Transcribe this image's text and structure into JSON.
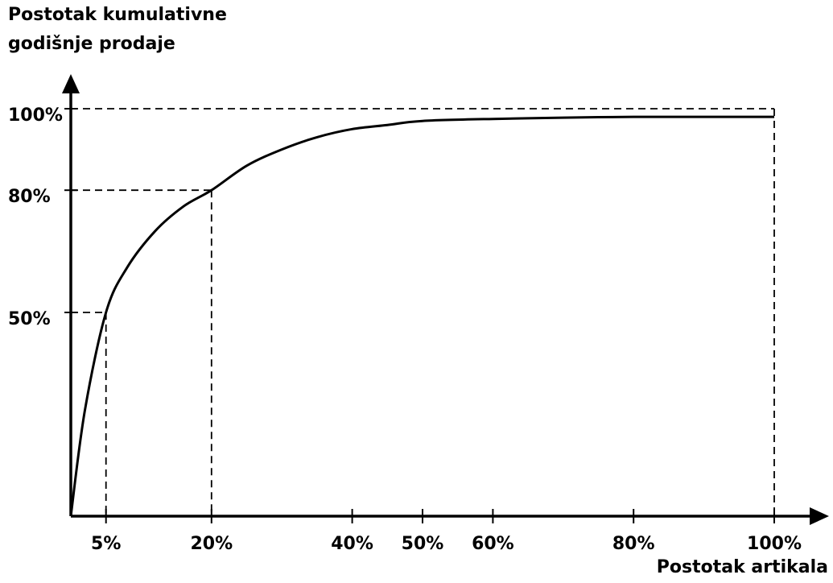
{
  "chart_data": {
    "type": "line",
    "title": "",
    "ylabel_lines": [
      "Postotak kumulativne",
      "godišnje prodaje"
    ],
    "xlabel": "Postotak artikala",
    "xlim": [
      0,
      100
    ],
    "ylim": [
      0,
      100
    ],
    "x_ticks": [
      {
        "value": 5,
        "label": "5%"
      },
      {
        "value": 20,
        "label": "20%"
      },
      {
        "value": 40,
        "label": "40%"
      },
      {
        "value": 50,
        "label": "50%"
      },
      {
        "value": 60,
        "label": "60%"
      },
      {
        "value": 80,
        "label": "80%"
      },
      {
        "value": 100,
        "label": "100%"
      }
    ],
    "y_ticks": [
      {
        "value": 50,
        "label": "50%"
      },
      {
        "value": 80,
        "label": "80%"
      },
      {
        "value": 100,
        "label": "100%"
      }
    ],
    "reference_lines": [
      {
        "x": 5,
        "y": 50
      },
      {
        "x": 20,
        "y": 80
      },
      {
        "x": 100,
        "y": 100
      }
    ],
    "series": [
      {
        "x": [
          0,
          2,
          5,
          8,
          12,
          16,
          20,
          25,
          30,
          35,
          40,
          45,
          50,
          60,
          70,
          80,
          90,
          100
        ],
        "y": [
          0,
          26,
          50,
          61,
          70,
          76,
          80,
          86,
          90,
          93,
          95,
          96,
          97,
          97.5,
          97.8,
          98,
          98,
          98
        ]
      }
    ],
    "grid": false,
    "line_color": "#000000"
  }
}
